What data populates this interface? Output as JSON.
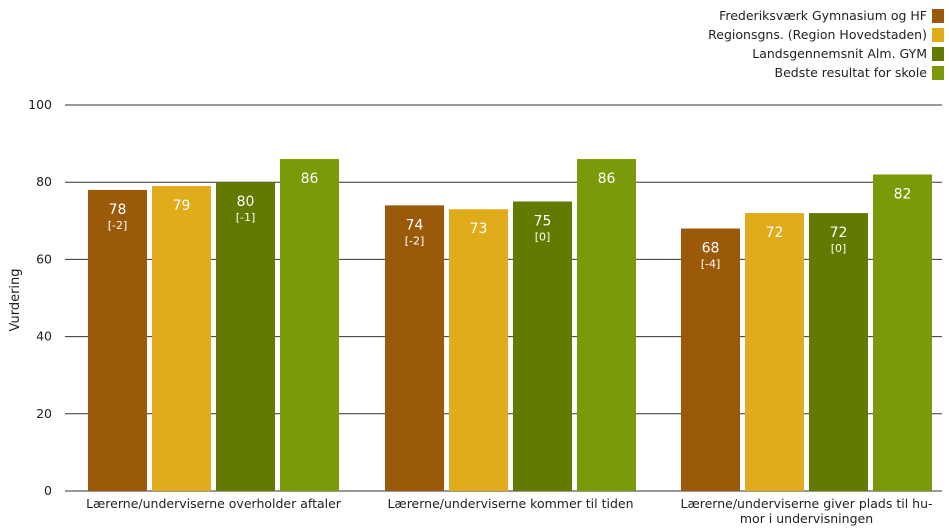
{
  "chart_data": {
    "type": "bar",
    "title": "",
    "xlabel": "",
    "ylabel": "Vurdering",
    "ylim": [
      0,
      100
    ],
    "yticks": [
      0,
      20,
      40,
      60,
      80,
      100
    ],
    "grid": true,
    "legend_position": "top-right",
    "categories": [
      [
        "Lærerne/underviserne overholder aftaler"
      ],
      [
        "Lærerne/underviserne kommer til tiden"
      ],
      [
        "Lærerne/underviserne giver plads til hu-",
        "mor i undervisningen"
      ]
    ],
    "series": [
      {
        "name": "Frederiksværk Gymnasium og HF",
        "color": "#9a5a0a",
        "values": [
          78,
          74,
          68
        ],
        "diffs": [
          "[-2]",
          "[-2]",
          "[-4]"
        ]
      },
      {
        "name": "Regionsgns. (Region Hovedstaden)",
        "color": "#e0ac1c",
        "values": [
          79,
          73,
          72
        ],
        "diffs": [
          null,
          null,
          null
        ]
      },
      {
        "name": "Landsgennemsnit Alm. GYM",
        "color": "#627a00",
        "values": [
          80,
          75,
          72
        ],
        "diffs": [
          "[-1]",
          "[0]",
          "[0]"
        ]
      },
      {
        "name": "Bedste resultat for skole",
        "color": "#7a9a0a",
        "values": [
          86,
          86,
          82
        ],
        "diffs": [
          null,
          null,
          null
        ]
      }
    ]
  }
}
